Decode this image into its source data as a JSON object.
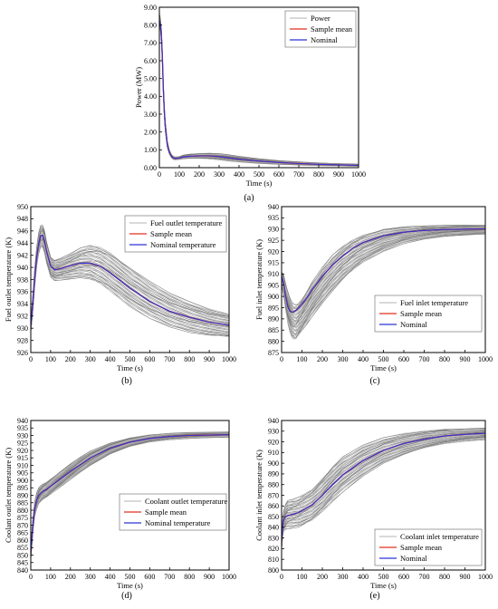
{
  "chart_data": [
    {
      "id": "a",
      "type": "line",
      "panel_label": "(a)",
      "xlabel": "Time (s)",
      "ylabel": "Power (MW)",
      "xlim": [
        0,
        1000
      ],
      "ylim": [
        0,
        9
      ],
      "xticks": [
        0,
        100,
        200,
        300,
        400,
        500,
        600,
        700,
        800,
        900,
        1000
      ],
      "yticks": [
        0,
        1,
        2,
        3,
        4,
        5,
        6,
        7,
        8,
        9
      ],
      "ytick_decimals": 2,
      "legend_position": "top-right",
      "x": [
        0,
        5,
        10,
        15,
        20,
        25,
        30,
        40,
        50,
        60,
        70,
        80,
        100,
        120,
        150,
        200,
        250,
        300,
        350,
        400,
        500,
        600,
        700,
        800,
        900,
        1000
      ],
      "series": [
        {
          "name": "Power",
          "role": "ensemble",
          "color": "#9a9a9a",
          "upper": [
            8.7,
            8.4,
            7.9,
            6.6,
            4.8,
            3.5,
            2.6,
            1.5,
            1.0,
            0.75,
            0.64,
            0.6,
            0.62,
            0.7,
            0.76,
            0.8,
            0.82,
            0.8,
            0.72,
            0.64,
            0.5,
            0.4,
            0.33,
            0.27,
            0.23,
            0.2
          ],
          "lower": [
            8.0,
            7.7,
            7.1,
            5.8,
            4.0,
            2.8,
            2.0,
            1.1,
            0.75,
            0.55,
            0.46,
            0.43,
            0.46,
            0.5,
            0.52,
            0.52,
            0.48,
            0.43,
            0.37,
            0.32,
            0.24,
            0.18,
            0.14,
            0.11,
            0.09,
            0.07
          ]
        },
        {
          "name": "Sample mean",
          "color": "#e03020",
          "values": [
            8.3,
            8.0,
            7.5,
            6.2,
            4.4,
            3.1,
            2.3,
            1.3,
            0.88,
            0.65,
            0.55,
            0.52,
            0.54,
            0.6,
            0.64,
            0.66,
            0.66,
            0.62,
            0.55,
            0.48,
            0.37,
            0.29,
            0.23,
            0.19,
            0.16,
            0.13
          ]
        },
        {
          "name": "Nominal",
          "color": "#2a35d8",
          "values": [
            8.3,
            8.0,
            7.5,
            6.2,
            4.4,
            3.1,
            2.3,
            1.3,
            0.88,
            0.65,
            0.55,
            0.52,
            0.54,
            0.6,
            0.64,
            0.66,
            0.66,
            0.62,
            0.55,
            0.48,
            0.37,
            0.29,
            0.23,
            0.19,
            0.16,
            0.13
          ]
        }
      ]
    },
    {
      "id": "b",
      "type": "line",
      "panel_label": "(b)",
      "xlabel": "Time (s)",
      "ylabel": "Fuel outlet temperature (K)",
      "xlim": [
        0,
        1000
      ],
      "ylim": [
        926,
        950
      ],
      "xticks": [
        0,
        100,
        200,
        300,
        400,
        500,
        600,
        700,
        800,
        900,
        1000
      ],
      "yticks": [
        926,
        928,
        930,
        932,
        934,
        936,
        938,
        940,
        942,
        944,
        946,
        948,
        950
      ],
      "ytick_decimals": 0,
      "legend_position": "top-right",
      "x": [
        0,
        10,
        20,
        30,
        40,
        50,
        60,
        70,
        80,
        100,
        120,
        150,
        200,
        250,
        300,
        350,
        400,
        500,
        600,
        700,
        800,
        900,
        1000
      ],
      "series": [
        {
          "name": "Fuel outlet temperature",
          "role": "ensemble",
          "color": "#9a9a9a",
          "upper": [
            931.5,
            935.5,
            940.0,
            943.5,
            945.8,
            946.9,
            946.9,
            946.0,
            944.3,
            941.8,
            941.2,
            941.5,
            942.3,
            943.2,
            943.7,
            943.4,
            942.5,
            940.0,
            937.7,
            935.8,
            934.4,
            933.2,
            932.4
          ],
          "lower": [
            929.2,
            932.5,
            936.8,
            940.2,
            942.3,
            943.4,
            943.4,
            942.3,
            940.6,
            938.3,
            937.8,
            937.9,
            938.1,
            938.3,
            938.0,
            937.2,
            936.0,
            933.5,
            931.6,
            930.2,
            929.3,
            928.8,
            928.5
          ]
        },
        {
          "name": "Sample mean",
          "color": "#e03020",
          "values": [
            930.3,
            934.0,
            938.4,
            941.8,
            944.0,
            945.2,
            945.3,
            944.3,
            942.6,
            940.2,
            939.6,
            939.8,
            940.3,
            940.7,
            940.7,
            940.2,
            939.1,
            936.6,
            934.4,
            932.8,
            931.8,
            931.0,
            930.5
          ]
        },
        {
          "name": "Nominal temperature",
          "color": "#2a35d8",
          "values": [
            930.3,
            934.0,
            938.4,
            941.8,
            944.0,
            945.2,
            945.3,
            944.3,
            942.6,
            940.2,
            939.6,
            939.8,
            940.3,
            940.7,
            940.7,
            940.2,
            939.1,
            936.6,
            934.4,
            932.8,
            931.8,
            931.0,
            930.5
          ]
        }
      ]
    },
    {
      "id": "c",
      "type": "line",
      "panel_label": "(c)",
      "xlabel": "Time (s)",
      "ylabel": "Fuel inlet temperature (K)",
      "xlim": [
        0,
        1000
      ],
      "ylim": [
        875,
        940
      ],
      "xticks": [
        0,
        100,
        200,
        300,
        400,
        500,
        600,
        700,
        800,
        900,
        1000
      ],
      "yticks": [
        875,
        880,
        885,
        890,
        895,
        900,
        905,
        910,
        915,
        920,
        925,
        930,
        935,
        940
      ],
      "ytick_decimals": 0,
      "legend_position": "center-right",
      "x": [
        0,
        10,
        20,
        30,
        40,
        50,
        60,
        70,
        80,
        100,
        125,
        150,
        200,
        250,
        300,
        350,
        400,
        500,
        600,
        700,
        800,
        900,
        1000
      ],
      "series": [
        {
          "name": "Fuel inlet temperature",
          "role": "ensemble",
          "color": "#9a9a9a",
          "upper": [
            911.0,
            910.0,
            906.0,
            902.5,
            899.5,
            897.5,
            896.5,
            896.5,
            897.0,
            899.0,
            902.5,
            906.5,
            913.0,
            918.5,
            922.5,
            925.5,
            927.5,
            930.0,
            931.0,
            931.5,
            931.7,
            931.8,
            931.8
          ],
          "lower": [
            905.0,
            900.0,
            893.5,
            888.0,
            884.5,
            882.0,
            881.0,
            881.0,
            882.0,
            884.5,
            887.5,
            891.0,
            897.0,
            902.5,
            907.5,
            911.5,
            915.0,
            920.0,
            923.5,
            925.5,
            926.7,
            927.3,
            927.6
          ]
        },
        {
          "name": "Sample mean",
          "color": "#e03020",
          "values": [
            909.0,
            906.0,
            900.0,
            895.5,
            893.5,
            893.0,
            893.2,
            893.8,
            894.5,
            896.5,
            899.5,
            903.0,
            909.0,
            914.0,
            918.0,
            921.5,
            924.0,
            927.0,
            928.6,
            929.4,
            929.8,
            930.0,
            930.1
          ]
        },
        {
          "name": "Nominal",
          "color": "#2a35d8",
          "values": [
            909.0,
            906.0,
            900.0,
            895.5,
            893.5,
            893.0,
            893.2,
            893.8,
            894.5,
            896.5,
            899.5,
            903.0,
            909.0,
            914.0,
            918.0,
            921.5,
            924.0,
            927.0,
            928.6,
            929.4,
            929.8,
            930.0,
            930.1
          ]
        }
      ]
    },
    {
      "id": "d",
      "type": "line",
      "panel_label": "(d)",
      "xlabel": "Time (s)",
      "ylabel": "Coolant outlet temperature (K)",
      "xlim": [
        0,
        1000
      ],
      "ylim": [
        840,
        940
      ],
      "xticks": [
        0,
        100,
        200,
        300,
        400,
        500,
        600,
        700,
        800,
        900,
        1000
      ],
      "yticks": [
        840,
        845,
        850,
        855,
        860,
        865,
        870,
        875,
        880,
        885,
        890,
        895,
        900,
        905,
        910,
        915,
        920,
        925,
        930,
        935,
        940
      ],
      "ytick_decimals": 0,
      "legend_position": "center-right",
      "x": [
        0,
        5,
        10,
        20,
        30,
        40,
        50,
        60,
        80,
        100,
        150,
        200,
        250,
        300,
        400,
        500,
        600,
        700,
        800,
        900,
        1000
      ],
      "series": [
        {
          "name": "Coolant outlet temperature",
          "role": "ensemble",
          "color": "#9a9a9a",
          "upper": [
            856.0,
            865.0,
            874.0,
            886.0,
            892.0,
            895.0,
            896.5,
            897.5,
            899.0,
            901.0,
            906.0,
            911.0,
            915.5,
            919.5,
            925.0,
            928.5,
            930.5,
            931.5,
            932.0,
            932.2,
            932.3
          ],
          "lower": [
            846.0,
            855.0,
            864.0,
            876.0,
            881.0,
            884.5,
            886.0,
            887.0,
            888.5,
            890.5,
            895.5,
            900.5,
            905.5,
            910.0,
            917.5,
            922.5,
            925.5,
            927.0,
            928.0,
            928.5,
            928.8
          ]
        },
        {
          "name": "Sample mean",
          "color": "#e03020",
          "values": [
            851.0,
            860.0,
            869.0,
            881.0,
            887.0,
            890.0,
            891.5,
            892.5,
            894.0,
            896.0,
            901.0,
            906.0,
            910.5,
            915.0,
            921.5,
            925.5,
            928.0,
            929.3,
            930.0,
            930.3,
            930.5
          ]
        },
        {
          "name": "Nominal temperature",
          "color": "#2a35d8",
          "values": [
            851.0,
            860.0,
            869.0,
            881.0,
            887.0,
            890.0,
            891.5,
            892.5,
            894.0,
            896.0,
            901.0,
            906.0,
            910.5,
            915.0,
            921.5,
            925.5,
            928.0,
            929.3,
            930.0,
            930.3,
            930.5
          ]
        }
      ]
    },
    {
      "id": "e",
      "type": "line",
      "panel_label": "(e)",
      "xlabel": "Time (s)",
      "ylabel": "Coolant inlet temperature (K)",
      "xlim": [
        0,
        1000
      ],
      "ylim": [
        800,
        940
      ],
      "xticks": [
        0,
        100,
        200,
        300,
        400,
        500,
        600,
        700,
        800,
        900,
        1000
      ],
      "yticks": [
        800,
        810,
        820,
        830,
        840,
        850,
        860,
        870,
        880,
        890,
        900,
        910,
        920,
        930,
        940
      ],
      "ytick_decimals": 0,
      "legend_position": "bottom-right",
      "x": [
        0,
        5,
        10,
        20,
        30,
        50,
        80,
        100,
        150,
        200,
        250,
        300,
        400,
        500,
        600,
        700,
        800,
        900,
        1000
      ],
      "series": [
        {
          "name": "Coolant inlet temperature",
          "role": "ensemble",
          "color": "#9a9a9a",
          "upper": [
            835.0,
            848.0,
            856.0,
            862.0,
            865.0,
            866.0,
            868.0,
            870.0,
            876.0,
            886.0,
            897.0,
            906.0,
            917.0,
            924.0,
            928.0,
            930.5,
            932.0,
            932.5,
            933.0
          ],
          "lower": [
            818.0,
            830.0,
            836.0,
            838.0,
            838.5,
            839.0,
            840.0,
            841.5,
            846.0,
            854.0,
            864.0,
            873.0,
            888.0,
            900.0,
            908.0,
            914.0,
            918.0,
            920.5,
            922.0
          ]
        },
        {
          "name": "Sample mean",
          "color": "#e03020",
          "values": [
            826.0,
            840.0,
            847.0,
            850.0,
            851.0,
            852.0,
            853.5,
            855.5,
            861.0,
            870.0,
            880.0,
            889.0,
            902.5,
            912.0,
            918.5,
            922.5,
            925.5,
            927.0,
            928.0
          ]
        },
        {
          "name": "Nominal",
          "color": "#2a35d8",
          "values": [
            826.0,
            840.0,
            847.0,
            850.0,
            851.0,
            852.0,
            853.5,
            855.5,
            861.0,
            870.0,
            880.0,
            889.0,
            902.5,
            912.0,
            918.5,
            922.5,
            925.5,
            927.0,
            928.0
          ]
        }
      ]
    }
  ]
}
